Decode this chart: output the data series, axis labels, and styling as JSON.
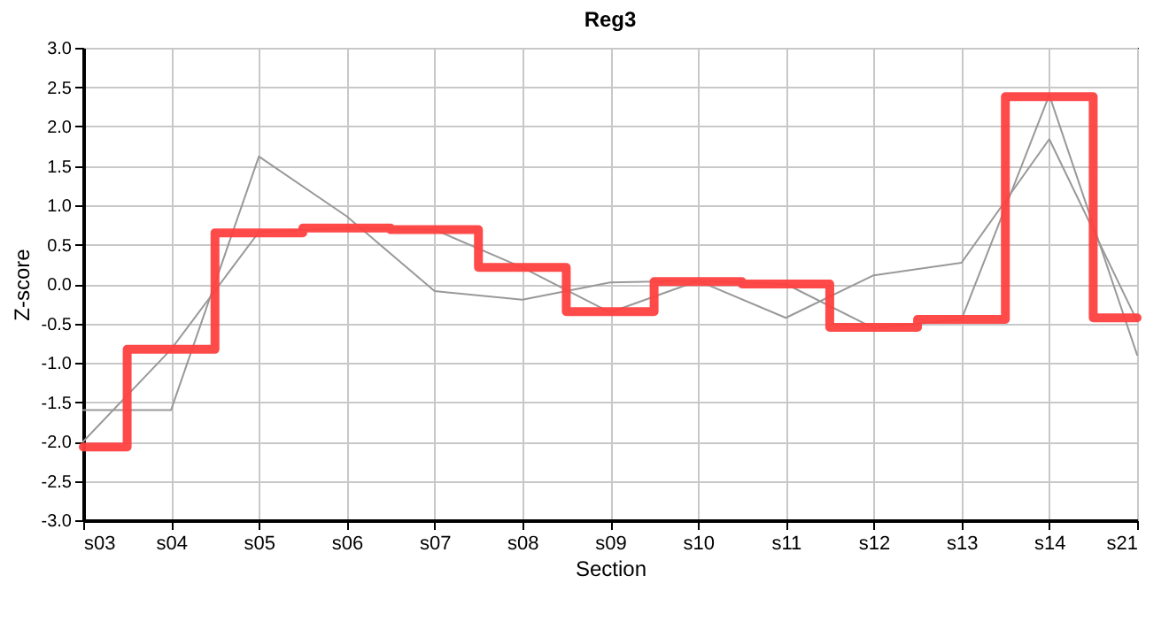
{
  "chart_data": {
    "type": "line",
    "title": "Reg3",
    "xlabel": "Section",
    "ylabel": "Z-score",
    "categories": [
      "s03",
      "s04",
      "s05",
      "s06",
      "s07",
      "s08",
      "s09",
      "s10",
      "s11",
      "s12",
      "s13",
      "s14",
      "s21"
    ],
    "series": [
      {
        "color": "#999999",
        "values": [
          -1.6,
          -1.6,
          1.62,
          0.86,
          -0.09,
          -0.2,
          0.02,
          0.04,
          -0.43,
          0.11,
          0.27,
          1.84,
          -0.47
        ]
      },
      {
        "color": "#999999",
        "values": [
          -2.0,
          -0.83,
          0.66,
          0.71,
          0.69,
          0.21,
          -0.36,
          0.04,
          0.0,
          -0.56,
          -0.45,
          2.4,
          -0.9
        ]
      },
      {
        "type": "step",
        "color": "#ff4040",
        "values": [
          -2.07,
          -0.83,
          0.65,
          0.71,
          0.69,
          0.21,
          -0.35,
          0.03,
          0.0,
          -0.55,
          -0.45,
          2.38,
          -0.43
        ]
      }
    ],
    "ylim": [
      -3.0,
      3.0
    ],
    "yticks": [
      {
        "value": -3,
        "label": "-3.0"
      },
      -2.5,
      {
        "value": -2,
        "label": "-2.0"
      },
      -1.5,
      {
        "value": -1,
        "label": "-1.0"
      },
      -0.5,
      {
        "value": 0,
        "label": "0.0"
      },
      0.5,
      {
        "value": 1,
        "label": "1.0"
      },
      1.5,
      {
        "value": 2,
        "label": "2.0"
      },
      2.5,
      {
        "value": 3,
        "label": "3.0"
      }
    ],
    "grid": true,
    "marker": "none",
    "line_style": "solid"
  }
}
